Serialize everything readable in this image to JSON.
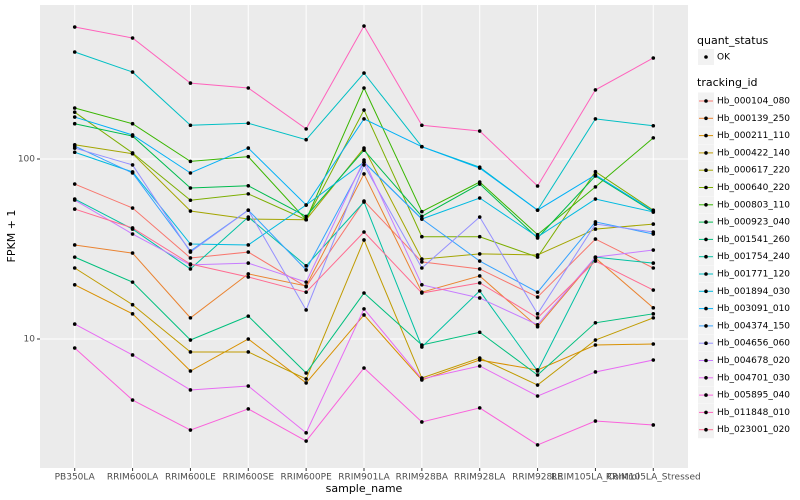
{
  "chart_data": {
    "type": "line",
    "x_label": "sample_name",
    "y_label": "FPKM + 1",
    "log_y": true,
    "grid": true,
    "legend_position": "right",
    "point_legend": {
      "title": "quant_status",
      "labels": [
        "OK"
      ],
      "color": "#000000"
    },
    "legend_title": "tracking_id",
    "categories": [
      "PB350LA",
      "RRIM600LA",
      "RRIM600LE",
      "RRIM600SE",
      "RRIM600PE",
      "RRIM901LA",
      "RRIM928BA",
      "RRIM928LA",
      "RRIM928LE",
      "RRIM105LA_Control",
      "RRIM105LA_Stressed"
    ],
    "ylim": [
      1.92,
      717
    ],
    "yticks": [
      10,
      100
    ],
    "series": [
      {
        "name": "Hb_000104_080",
        "color": "#F8766D",
        "values": [
          72.6,
          53.4,
          28.2,
          30.4,
          19.5,
          58.4,
          26.8,
          24.5,
          17.1,
          35.9,
          24.8
        ]
      },
      {
        "name": "Hb_000139_250",
        "color": "#EA8331",
        "values": [
          33.3,
          30,
          13.1,
          23,
          19.7,
          82.6,
          18.2,
          22.4,
          11.7,
          28.2,
          14.9
        ]
      },
      {
        "name": "Hb_000211_110",
        "color": "#D89000",
        "values": [
          20,
          13.8,
          6.64,
          10,
          5.7,
          13.6,
          5.92,
          7.64,
          6.73,
          9.26,
          9.38
        ]
      },
      {
        "name": "Hb_000422_140",
        "color": "#C09B00",
        "values": [
          24.8,
          15.5,
          8.47,
          8.47,
          6,
          35.5,
          6.07,
          7.84,
          5.55,
          9.87,
          13.1
        ]
      },
      {
        "name": "Hb_000617_220",
        "color": "#A3A500",
        "values": [
          120,
          107,
          51.4,
          46.4,
          46,
          115,
          27.8,
          29.7,
          29.3,
          40.8,
          43.5
        ]
      },
      {
        "name": "Hb_000640_220",
        "color": "#7CAE00",
        "values": [
          182,
          108,
          59,
          64,
          46,
          187,
          37,
          37,
          28.5,
          85,
          52
        ]
      },
      {
        "name": "Hb_000803_110",
        "color": "#39B600",
        "values": [
          192,
          157,
          97,
          103,
          46,
          248,
          51,
          74.5,
          38,
          70,
          131
        ]
      },
      {
        "name": "Hb_000923_040",
        "color": "#00BB4E",
        "values": [
          157,
          134,
          69,
          71,
          48,
          112,
          48,
          72.6,
          36.4,
          80.5,
          50.8
        ]
      },
      {
        "name": "Hb_001541_260",
        "color": "#00BF7D",
        "values": [
          28.5,
          20.7,
          9.87,
          13.4,
          6.47,
          18,
          9.26,
          10.9,
          6.31,
          12.3,
          13.8
        ]
      },
      {
        "name": "Hb_001754_240",
        "color": "#00C1A3",
        "values": [
          59.9,
          40.8,
          24.5,
          47.6,
          25.5,
          57.7,
          9.03,
          18.5,
          6.64,
          28.5,
          26.4
        ]
      },
      {
        "name": "Hb_001771_120",
        "color": "#00BFC4",
        "values": [
          393,
          304,
          154,
          158,
          128,
          300,
          117,
          90,
          52,
          167,
          153
        ]
      },
      {
        "name": "Hb_001894_030",
        "color": "#00BAE0",
        "values": [
          109,
          84.7,
          33.7,
          33.3,
          55.5,
          96,
          46.4,
          60.7,
          36.9,
          59.9,
          50.8
        ]
      },
      {
        "name": "Hb_003091_010",
        "color": "#00B0F6",
        "values": [
          171,
          136,
          83.6,
          115,
          55.5,
          167,
          117,
          89,
          52,
          81.5,
          51.4
        ]
      },
      {
        "name": "Hb_004374_150",
        "color": "#35A2FF",
        "values": [
          118,
          83.6,
          30.8,
          52,
          24.2,
          96,
          46.4,
          27.1,
          18.2,
          44.7,
          38.3
        ]
      },
      {
        "name": "Hb_004656_060",
        "color": "#9590FF",
        "values": [
          115,
          92.7,
          30.4,
          52,
          14.5,
          92.7,
          24.8,
          47.6,
          13.8,
          43.5,
          39.3
        ]
      },
      {
        "name": "Hb_004678_020",
        "color": "#C77CFF",
        "values": [
          59.1,
          38.3,
          25.8,
          26.4,
          20.7,
          98.7,
          20,
          16.9,
          12,
          28.5,
          31.2
        ]
      },
      {
        "name": "Hb_004701_030",
        "color": "#E76BF3",
        "values": [
          12.1,
          8.15,
          5.21,
          5.48,
          3.01,
          14.7,
          6,
          7.08,
          4.82,
          6.56,
          7.64
        ]
      },
      {
        "name": "Hb_005895_040",
        "color": "#FA62DB",
        "values": [
          8.91,
          4.58,
          3.12,
          4.09,
          2.71,
          6.9,
          3.46,
          4.14,
          2.58,
          3.5,
          3.33
        ]
      },
      {
        "name": "Hb_011848_010",
        "color": "#FF62BC",
        "values": [
          541,
          470,
          264,
          248,
          147,
          548,
          154,
          143,
          70.8,
          242,
          364
        ]
      },
      {
        "name": "Hb_023001_020",
        "color": "#FF6C91",
        "values": [
          52.7,
          41.4,
          26.1,
          22.1,
          18.2,
          39.3,
          18,
          20.5,
          13.1,
          27.1,
          18.7
        ]
      }
    ]
  }
}
